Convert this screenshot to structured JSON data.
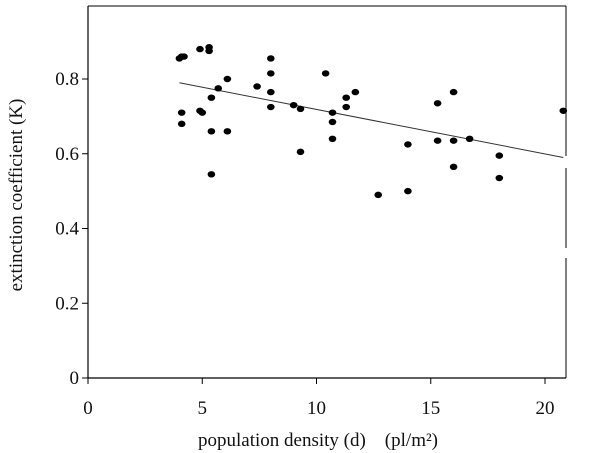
{
  "chart_data": {
    "type": "scatter",
    "title": "",
    "xlabel": "population density (d)    (pl/m²)",
    "ylabel": "extinction coefficient (K)",
    "xlim": [
      0,
      22
    ],
    "ylim": [
      0,
      1.0
    ],
    "x_ticks": [
      0,
      5,
      10,
      15,
      20
    ],
    "y_ticks": [
      0,
      0.2,
      0.4,
      0.6,
      0.8
    ],
    "x_tick_labels": [
      "0",
      "5",
      "10",
      "15",
      "20"
    ],
    "y_tick_labels": [
      "0",
      "0.2",
      "0.4",
      "0.6",
      "0.8"
    ],
    "grid": false,
    "legend": "none",
    "point_color": "#000000",
    "trendline": {
      "x": [
        4.0,
        20.8
      ],
      "y": [
        0.79,
        0.59
      ]
    },
    "points": [
      {
        "x": 4.0,
        "y": 0.855
      },
      {
        "x": 4.1,
        "y": 0.86
      },
      {
        "x": 4.2,
        "y": 0.86
      },
      {
        "x": 4.1,
        "y": 0.71
      },
      {
        "x": 4.1,
        "y": 0.68
      },
      {
        "x": 4.9,
        "y": 0.88
      },
      {
        "x": 4.9,
        "y": 0.715
      },
      {
        "x": 5.0,
        "y": 0.71
      },
      {
        "x": 5.3,
        "y": 0.885
      },
      {
        "x": 5.3,
        "y": 0.875
      },
      {
        "x": 5.4,
        "y": 0.75
      },
      {
        "x": 5.4,
        "y": 0.66
      },
      {
        "x": 5.4,
        "y": 0.545
      },
      {
        "x": 5.7,
        "y": 0.775
      },
      {
        "x": 6.1,
        "y": 0.8
      },
      {
        "x": 6.1,
        "y": 0.66
      },
      {
        "x": 7.4,
        "y": 0.78
      },
      {
        "x": 8.0,
        "y": 0.855
      },
      {
        "x": 8.0,
        "y": 0.815
      },
      {
        "x": 8.0,
        "y": 0.765
      },
      {
        "x": 8.0,
        "y": 0.725
      },
      {
        "x": 9.0,
        "y": 0.73
      },
      {
        "x": 9.3,
        "y": 0.72
      },
      {
        "x": 9.3,
        "y": 0.605
      },
      {
        "x": 10.4,
        "y": 0.815
      },
      {
        "x": 10.7,
        "y": 0.71
      },
      {
        "x": 10.7,
        "y": 0.685
      },
      {
        "x": 10.7,
        "y": 0.64
      },
      {
        "x": 11.3,
        "y": 0.75
      },
      {
        "x": 11.3,
        "y": 0.725
      },
      {
        "x": 11.7,
        "y": 0.765
      },
      {
        "x": 12.7,
        "y": 0.49
      },
      {
        "x": 14.0,
        "y": 0.625
      },
      {
        "x": 14.0,
        "y": 0.5
      },
      {
        "x": 15.3,
        "y": 0.735
      },
      {
        "x": 15.3,
        "y": 0.635
      },
      {
        "x": 16.0,
        "y": 0.765
      },
      {
        "x": 16.0,
        "y": 0.635
      },
      {
        "x": 16.0,
        "y": 0.565
      },
      {
        "x": 16.7,
        "y": 0.64
      },
      {
        "x": 18.0,
        "y": 0.595
      },
      {
        "x": 18.0,
        "y": 0.535
      },
      {
        "x": 20.8,
        "y": 0.715
      }
    ]
  }
}
